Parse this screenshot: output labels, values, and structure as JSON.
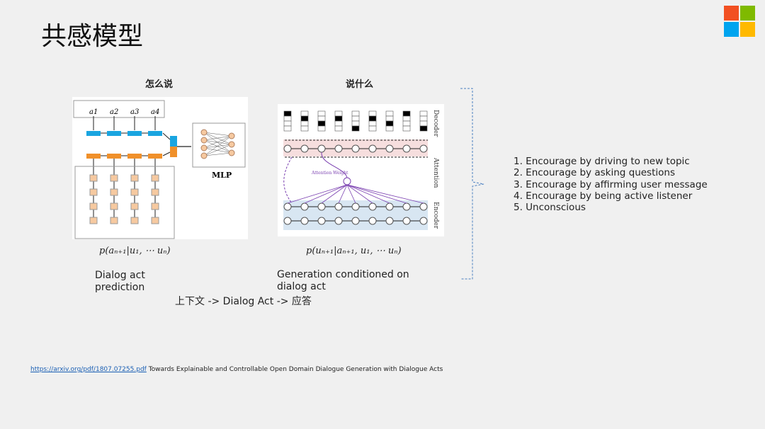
{
  "title": "共感模型",
  "logo": {
    "colors": [
      "#f25022",
      "#7fba00",
      "#00a4ef",
      "#ffb900"
    ]
  },
  "left": {
    "header": "怎么说",
    "diagram": {
      "labels": [
        "a1",
        "a2",
        "a3",
        "a4"
      ],
      "mlp": "MLP"
    },
    "formula": "p(aₙ₊₁|u₁, ⋯ uₙ)",
    "caption": "Dialog act prediction"
  },
  "right": {
    "header": "说什么",
    "diagram": {
      "decoder": "Decoder",
      "attention": "Attention",
      "encoder": "Encoder",
      "attention_weight": "Attention Weight"
    },
    "formula": "p(uₙ₊₁|aₙ₊₁, u₁, ⋯ uₙ)",
    "caption": "Generation conditioned on dialog act"
  },
  "pipeline": "上下文 -> Dialog Act -> 应答",
  "list": [
    "1. Encourage by driving to new topic",
    "2. Encourage by asking questions",
    "3. Encourage by affirming user message",
    "4. Encourage by being active listener",
    "5. Unconscious"
  ],
  "reference": {
    "link": "https://arxiv.org/pdf/1807.07255.pdf",
    "text": "Towards Explainable and Controllable Open Domain Dialogue Generation with Dialogue Acts"
  }
}
